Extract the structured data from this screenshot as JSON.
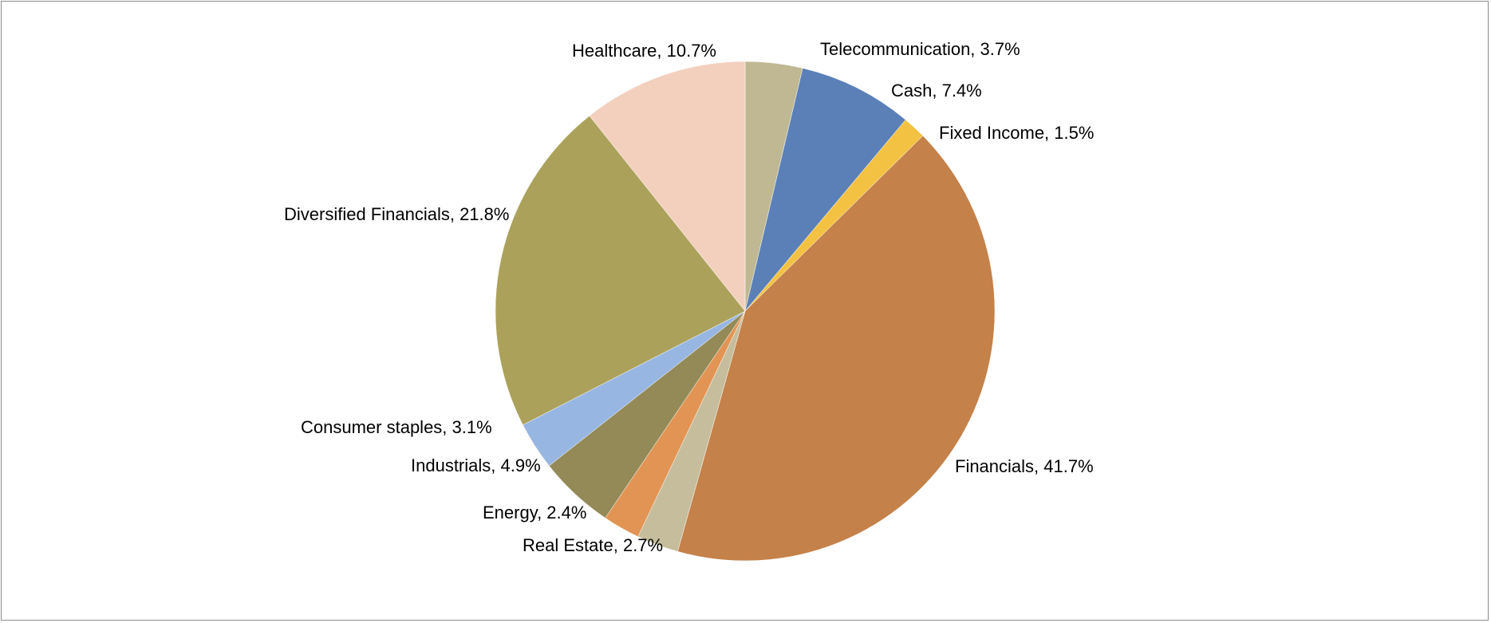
{
  "chart_data": {
    "type": "pie",
    "title": "",
    "start_angle_deg": 0,
    "direction": "clockwise",
    "legend": "none",
    "slices": [
      {
        "label": "Telecommunication, 3.7%",
        "name": "Telecommunication",
        "value": 3.7,
        "color": "#BFB893"
      },
      {
        "label": "Cash, 7.4%",
        "name": "Cash",
        "value": 7.4,
        "color": "#5B80B8"
      },
      {
        "label": "Fixed Income, 1.5%",
        "name": "Fixed Income",
        "value": 1.5,
        "color": "#F4C242"
      },
      {
        "label": "Financials, 41.7%",
        "name": "Financials",
        "value": 41.7,
        "color": "#C48149"
      },
      {
        "label": "Real Estate, 2.7%",
        "name": "Real Estate",
        "value": 2.7,
        "color": "#C5BD9B"
      },
      {
        "label": "Energy, 2.4%",
        "name": "Energy",
        "value": 2.4,
        "color": "#E29454"
      },
      {
        "label": "Industrials, 4.9%",
        "name": "Industrials",
        "value": 4.9,
        "color": "#938A58"
      },
      {
        "label": "Consumer staples, 3.1%",
        "name": "Consumer staples",
        "value": 3.1,
        "color": "#98B6E2"
      },
      {
        "label": "Diversified Financials, 21.8%",
        "name": "Diversified Financials",
        "value": 21.8,
        "color": "#ABA15B"
      },
      {
        "label": "Healthcare, 10.7%",
        "name": "Healthcare",
        "value": 10.7,
        "color": "#F3D0BD"
      }
    ]
  }
}
